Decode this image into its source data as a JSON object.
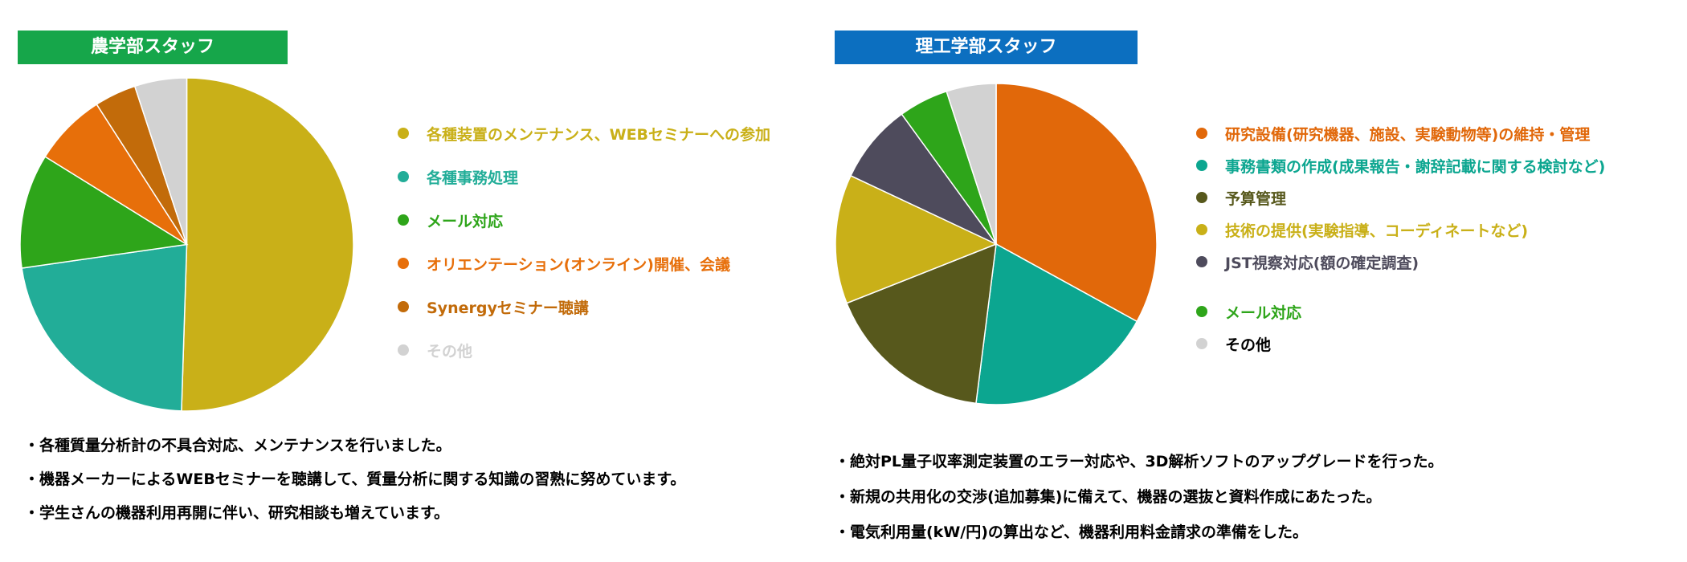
{
  "chart_data": [
    {
      "type": "pie",
      "title": "農学部スタッフ",
      "header_color": "#16a64a",
      "slices": [
        {
          "label": "各種装置のメンテナンス、WEBセミナーへの参加",
          "value": 50,
          "color": "#c9b018"
        },
        {
          "label": "各種事務処理",
          "value": 22,
          "color": "#22ad98"
        },
        {
          "label": "メール対応",
          "value": 11,
          "color": "#2ea51a"
        },
        {
          "label": "オリエンテーション(オンライン)開催、会議",
          "value": 7,
          "color": "#e76f0a"
        },
        {
          "label": "Synergyセミナー聴講",
          "value": 4,
          "color": "#c26b0a"
        },
        {
          "label": "その他",
          "value": 5,
          "color": "#d2d2d2"
        }
      ],
      "legend_position": "right"
    },
    {
      "type": "pie",
      "title": "理工学部スタッフ",
      "header_color": "#0c6fc0",
      "slices": [
        {
          "label": "研究設備(研究機器、施設、実験動物等)の維持・管理",
          "value": 33,
          "color": "#e1680a",
          "legend_color": "#e1680a"
        },
        {
          "label": "事務書類の作成(成果報告・謝辞記載に関する検討など)",
          "value": 19,
          "color": "#0ca690",
          "legend_color": "#0ca690"
        },
        {
          "label": "予算管理",
          "value": 17,
          "color": "#57581c",
          "legend_color": "#57581c"
        },
        {
          "label": "技術の提供(実験指導、コーディネートなど)",
          "value": 13,
          "color": "#c9b018",
          "legend_color": "#c9b018"
        },
        {
          "label": "JST視察対応(額の確定調査)",
          "value": 8,
          "color": "#4e4b5c",
          "legend_color": "#4e4b5c"
        },
        {
          "label": "メール対応",
          "value": 5,
          "color": "#2ea51a",
          "legend_color": "#2ea51a"
        },
        {
          "label": "その他",
          "value": 5,
          "color": "#d2d2d2",
          "legend_color": "#000000"
        }
      ],
      "legend_position": "right"
    }
  ],
  "notes": {
    "agri": [
      "・各種質量分析計の不具合対応、メンテナンスを行いました。",
      "・機器メーカーによるWEBセミナーを聴講して、質量分析に関する知識の習熟に努めています。",
      "・学生さんの機器利用再開に伴い、研究相談も増えています。"
    ],
    "sci": [
      "・絶対PL量子収率測定装置のエラー対応や、3D解析ソフトのアップグレードを行った。",
      "・新規の共用化の交渉(追加募集)に備えて、機器の選抜と資料作成にあたった。",
      "・電気利用量(kW/円)の算出など、機器利用料金請求の準備をした。"
    ]
  }
}
